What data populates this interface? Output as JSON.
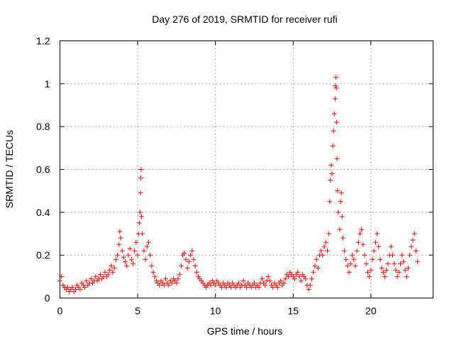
{
  "chart_data": {
    "type": "scatter",
    "title": "Day 276 of 2019, SRMTID for receiver rufi",
    "xlabel": "GPS time / hours",
    "ylabel": "SRMTID / TECUs",
    "xlim": [
      0,
      24
    ],
    "ylim": [
      0,
      1.2
    ],
    "xticks": [
      0,
      5,
      10,
      15,
      20
    ],
    "xtick_labels": [
      "0",
      "5",
      "10",
      "15",
      "20"
    ],
    "yticks": [
      0,
      0.2,
      0.4,
      0.6,
      0.8,
      1.0,
      1.2
    ],
    "ytick_labels": [
      "0",
      "0.2",
      "0.4",
      "0.6",
      "0.8",
      "1",
      "1.2"
    ],
    "grid": true,
    "marker": "+",
    "color": "#ff0000",
    "series": [
      {
        "name": "rufi",
        "points": [
          [
            0.0,
            0.08
          ],
          [
            0.1,
            0.1
          ],
          [
            0.2,
            0.06
          ],
          [
            0.3,
            0.05
          ],
          [
            0.4,
            0.04
          ],
          [
            0.5,
            0.05
          ],
          [
            0.6,
            0.03
          ],
          [
            0.7,
            0.04
          ],
          [
            0.8,
            0.05
          ],
          [
            0.9,
            0.03
          ],
          [
            1.0,
            0.04
          ],
          [
            1.1,
            0.06
          ],
          [
            1.2,
            0.05
          ],
          [
            1.3,
            0.04
          ],
          [
            1.4,
            0.07
          ],
          [
            1.5,
            0.06
          ],
          [
            1.6,
            0.05
          ],
          [
            1.7,
            0.08
          ],
          [
            1.8,
            0.06
          ],
          [
            1.9,
            0.07
          ],
          [
            2.0,
            0.09
          ],
          [
            2.1,
            0.07
          ],
          [
            2.2,
            0.08
          ],
          [
            2.3,
            0.1
          ],
          [
            2.4,
            0.08
          ],
          [
            2.5,
            0.09
          ],
          [
            2.6,
            0.11
          ],
          [
            2.7,
            0.09
          ],
          [
            2.8,
            0.1
          ],
          [
            2.9,
            0.12
          ],
          [
            3.0,
            0.1
          ],
          [
            3.1,
            0.11
          ],
          [
            3.2,
            0.13
          ],
          [
            3.3,
            0.15
          ],
          [
            3.4,
            0.12
          ],
          [
            3.5,
            0.14
          ],
          [
            3.6,
            0.18
          ],
          [
            3.7,
            0.2
          ],
          [
            3.8,
            0.25
          ],
          [
            3.85,
            0.31
          ],
          [
            3.9,
            0.28
          ],
          [
            4.0,
            0.22
          ],
          [
            4.1,
            0.19
          ],
          [
            4.2,
            0.17
          ],
          [
            4.3,
            0.15
          ],
          [
            4.4,
            0.2
          ],
          [
            4.5,
            0.23
          ],
          [
            4.6,
            0.18
          ],
          [
            4.7,
            0.16
          ],
          [
            4.8,
            0.22
          ],
          [
            4.9,
            0.26
          ],
          [
            5.0,
            0.2
          ],
          [
            5.05,
            0.3
          ],
          [
            5.1,
            0.35
          ],
          [
            5.15,
            0.4
          ],
          [
            5.18,
            0.49
          ],
          [
            5.2,
            0.56
          ],
          [
            5.22,
            0.6
          ],
          [
            5.25,
            0.38
          ],
          [
            5.3,
            0.3
          ],
          [
            5.4,
            0.22
          ],
          [
            5.5,
            0.18
          ],
          [
            5.6,
            0.24
          ],
          [
            5.7,
            0.26
          ],
          [
            5.8,
            0.2
          ],
          [
            5.9,
            0.15
          ],
          [
            6.0,
            0.12
          ],
          [
            6.1,
            0.1
          ],
          [
            6.2,
            0.08
          ],
          [
            6.3,
            0.07
          ],
          [
            6.4,
            0.06
          ],
          [
            6.5,
            0.08
          ],
          [
            6.6,
            0.07
          ],
          [
            6.7,
            0.06
          ],
          [
            6.8,
            0.09
          ],
          [
            6.9,
            0.07
          ],
          [
            7.0,
            0.06
          ],
          [
            7.1,
            0.08
          ],
          [
            7.2,
            0.07
          ],
          [
            7.3,
            0.09
          ],
          [
            7.4,
            0.08
          ],
          [
            7.5,
            0.07
          ],
          [
            7.6,
            0.09
          ],
          [
            7.7,
            0.11
          ],
          [
            7.8,
            0.15
          ],
          [
            7.9,
            0.2
          ],
          [
            8.0,
            0.21
          ],
          [
            8.1,
            0.18
          ],
          [
            8.2,
            0.14
          ],
          [
            8.3,
            0.17
          ],
          [
            8.4,
            0.2
          ],
          [
            8.5,
            0.22
          ],
          [
            8.6,
            0.18
          ],
          [
            8.7,
            0.15
          ],
          [
            8.8,
            0.12
          ],
          [
            8.9,
            0.1
          ],
          [
            9.0,
            0.09
          ],
          [
            9.1,
            0.08
          ],
          [
            9.2,
            0.07
          ],
          [
            9.3,
            0.06
          ],
          [
            9.4,
            0.05
          ],
          [
            9.5,
            0.06
          ],
          [
            9.6,
            0.07
          ],
          [
            9.7,
            0.06
          ],
          [
            9.8,
            0.08
          ],
          [
            9.9,
            0.07
          ],
          [
            10.0,
            0.06
          ],
          [
            10.1,
            0.08
          ],
          [
            10.2,
            0.07
          ],
          [
            10.3,
            0.06
          ],
          [
            10.4,
            0.05
          ],
          [
            10.5,
            0.07
          ],
          [
            10.6,
            0.06
          ],
          [
            10.7,
            0.05
          ],
          [
            10.8,
            0.07
          ],
          [
            10.9,
            0.06
          ],
          [
            11.0,
            0.05
          ],
          [
            11.1,
            0.07
          ],
          [
            11.2,
            0.06
          ],
          [
            11.3,
            0.05
          ],
          [
            11.4,
            0.06
          ],
          [
            11.5,
            0.07
          ],
          [
            11.6,
            0.05
          ],
          [
            11.7,
            0.06
          ],
          [
            11.8,
            0.08
          ],
          [
            11.9,
            0.06
          ],
          [
            12.0,
            0.05
          ],
          [
            12.1,
            0.07
          ],
          [
            12.2,
            0.06
          ],
          [
            12.3,
            0.05
          ],
          [
            12.4,
            0.06
          ],
          [
            12.5,
            0.07
          ],
          [
            12.6,
            0.05
          ],
          [
            12.7,
            0.06
          ],
          [
            12.8,
            0.05
          ],
          [
            12.9,
            0.07
          ],
          [
            13.0,
            0.09
          ],
          [
            13.1,
            0.07
          ],
          [
            13.2,
            0.06
          ],
          [
            13.3,
            0.08
          ],
          [
            13.4,
            0.1
          ],
          [
            13.5,
            0.08
          ],
          [
            13.6,
            0.06
          ],
          [
            13.7,
            0.05
          ],
          [
            13.8,
            0.07
          ],
          [
            13.9,
            0.06
          ],
          [
            14.0,
            0.05
          ],
          [
            14.1,
            0.07
          ],
          [
            14.2,
            0.08
          ],
          [
            14.3,
            0.06
          ],
          [
            14.4,
            0.07
          ],
          [
            14.5,
            0.09
          ],
          [
            14.6,
            0.11
          ],
          [
            14.7,
            0.1
          ],
          [
            14.8,
            0.12
          ],
          [
            14.9,
            0.11
          ],
          [
            15.0,
            0.1
          ],
          [
            15.1,
            0.09
          ],
          [
            15.2,
            0.11
          ],
          [
            15.3,
            0.12
          ],
          [
            15.4,
            0.1
          ],
          [
            15.5,
            0.08
          ],
          [
            15.6,
            0.11
          ],
          [
            15.7,
            0.1
          ],
          [
            15.8,
            0.09
          ],
          [
            15.9,
            0.06
          ],
          [
            16.0,
            0.04
          ],
          [
            16.1,
            0.06
          ],
          [
            16.2,
            0.09
          ],
          [
            16.3,
            0.12
          ],
          [
            16.4,
            0.15
          ],
          [
            16.5,
            0.18
          ],
          [
            16.6,
            0.14
          ],
          [
            16.7,
            0.2
          ],
          [
            16.8,
            0.22
          ],
          [
            16.9,
            0.2
          ],
          [
            17.0,
            0.24
          ],
          [
            17.1,
            0.26
          ],
          [
            17.2,
            0.22
          ],
          [
            17.3,
            0.3
          ],
          [
            17.35,
            0.45
          ],
          [
            17.4,
            0.55
          ],
          [
            17.45,
            0.62
          ],
          [
            17.5,
            0.58
          ],
          [
            17.55,
            0.71
          ],
          [
            17.6,
            0.78
          ],
          [
            17.65,
            0.86
          ],
          [
            17.7,
            0.93
          ],
          [
            17.72,
            0.99
          ],
          [
            17.75,
            1.03
          ],
          [
            17.78,
            0.98
          ],
          [
            17.8,
            0.82
          ],
          [
            17.82,
            0.65
          ],
          [
            17.85,
            0.5
          ],
          [
            17.9,
            0.4
          ],
          [
            18.0,
            0.32
          ],
          [
            18.05,
            0.45
          ],
          [
            18.1,
            0.49
          ],
          [
            18.15,
            0.38
          ],
          [
            18.2,
            0.28
          ],
          [
            18.3,
            0.22
          ],
          [
            18.4,
            0.18
          ],
          [
            18.5,
            0.15
          ],
          [
            18.6,
            0.12
          ],
          [
            18.7,
            0.16
          ],
          [
            18.8,
            0.2
          ],
          [
            18.9,
            0.18
          ],
          [
            19.0,
            0.15
          ],
          [
            19.1,
            0.22
          ],
          [
            19.2,
            0.26
          ],
          [
            19.3,
            0.3
          ],
          [
            19.4,
            0.32
          ],
          [
            19.5,
            0.25
          ],
          [
            19.6,
            0.2
          ],
          [
            19.7,
            0.16
          ],
          [
            19.8,
            0.12
          ],
          [
            19.9,
            0.1
          ],
          [
            20.0,
            0.13
          ],
          [
            20.1,
            0.18
          ],
          [
            20.2,
            0.22
          ],
          [
            20.3,
            0.26
          ],
          [
            20.4,
            0.3
          ],
          [
            20.5,
            0.24
          ],
          [
            20.6,
            0.18
          ],
          [
            20.7,
            0.14
          ],
          [
            20.8,
            0.12
          ],
          [
            20.9,
            0.1
          ],
          [
            21.0,
            0.13
          ],
          [
            21.1,
            0.16
          ],
          [
            21.2,
            0.2
          ],
          [
            21.3,
            0.24
          ],
          [
            21.4,
            0.2
          ],
          [
            21.5,
            0.16
          ],
          [
            21.6,
            0.13
          ],
          [
            21.7,
            0.1
          ],
          [
            21.8,
            0.12
          ],
          [
            21.9,
            0.16
          ],
          [
            22.0,
            0.2
          ],
          [
            22.1,
            0.17
          ],
          [
            22.2,
            0.13
          ],
          [
            22.3,
            0.1
          ],
          [
            22.4,
            0.14
          ],
          [
            22.5,
            0.2
          ],
          [
            22.6,
            0.24
          ],
          [
            22.7,
            0.27
          ],
          [
            22.8,
            0.3
          ],
          [
            22.9,
            0.22
          ],
          [
            23.0,
            0.17
          ]
        ]
      }
    ]
  }
}
